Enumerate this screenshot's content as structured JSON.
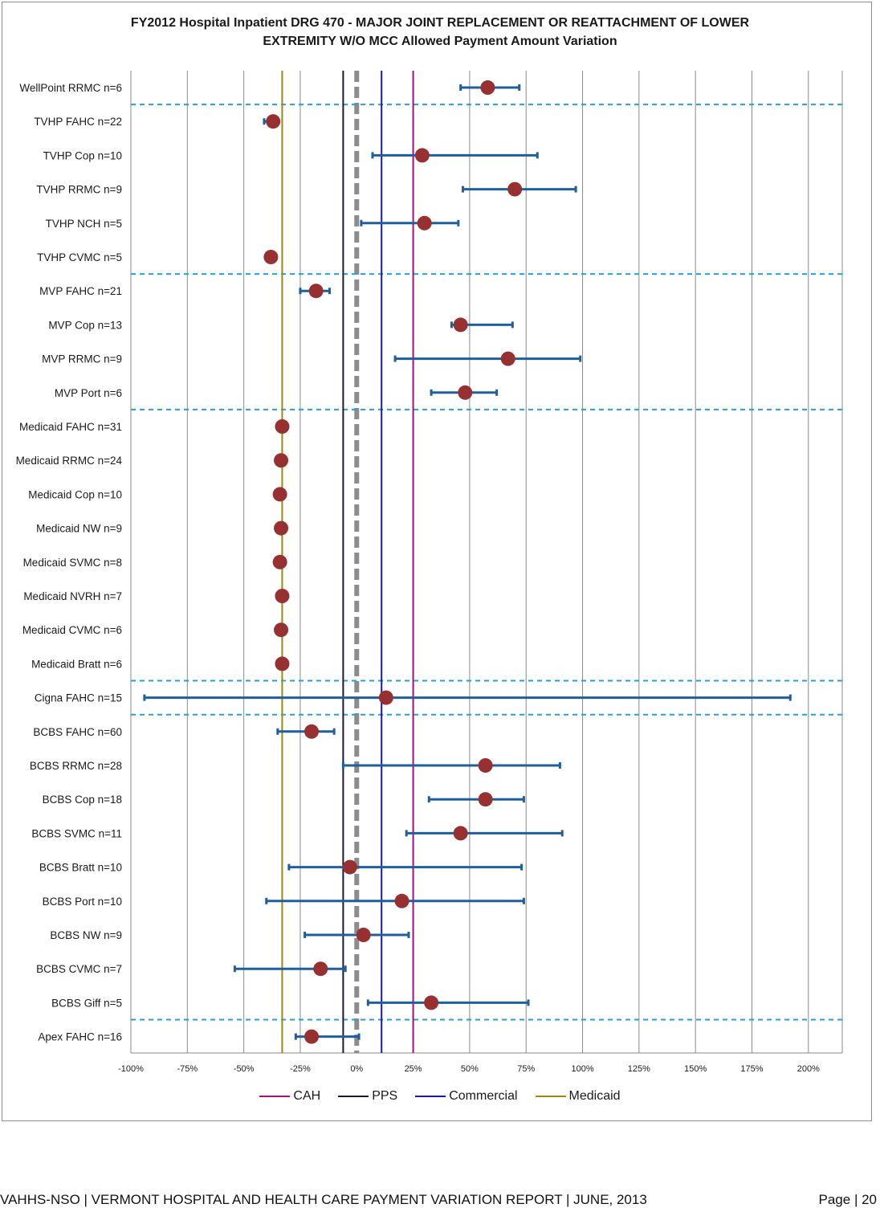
{
  "chart_data": {
    "type": "scatter",
    "title": "FY2012 Hospital Inpatient DRG 470 - MAJOR JOINT REPLACEMENT OR REATTACHMENT OF LOWER",
    "subtitle": "EXTREMITY W/O MCC Allowed Payment Amount Variation",
    "xlabel": "",
    "ylabel": "",
    "xlim": [
      -1.0,
      2.15
    ],
    "x_ticks": [
      -1.0,
      -0.75,
      -0.5,
      -0.25,
      0,
      0.25,
      0.5,
      0.75,
      1.0,
      1.25,
      1.5,
      1.75,
      2.0
    ],
    "x_tick_labels": [
      "-100%",
      "-75%",
      "-50%",
      "-25%",
      "0%",
      "25%",
      "50%",
      "75%",
      "100%",
      "125%",
      "150%",
      "175%",
      "200%"
    ],
    "grid": true,
    "marker_color": "#973030",
    "errorbar_color": "#1f5f9e",
    "separator_color": "#2a9fd6",
    "categories": [
      {
        "label": "WellPoint RRMC n=6",
        "value": 0.58,
        "low": 0.46,
        "high": 0.72
      },
      {
        "label": "TVHP FAHC n=22",
        "value": -0.37,
        "low": -0.41,
        "high": -0.36
      },
      {
        "label": "TVHP Cop n=10",
        "value": 0.29,
        "low": 0.07,
        "high": 0.8
      },
      {
        "label": "TVHP RRMC n=9",
        "value": 0.7,
        "low": 0.47,
        "high": 0.97
      },
      {
        "label": "TVHP NCH n=5",
        "value": 0.3,
        "low": 0.02,
        "high": 0.45
      },
      {
        "label": "TVHP CVMC n=5",
        "value": -0.38,
        "low": -0.4,
        "high": -0.36
      },
      {
        "label": "MVP FAHC n=21",
        "value": -0.18,
        "low": -0.25,
        "high": -0.12
      },
      {
        "label": "MVP Cop n=13",
        "value": 0.46,
        "low": 0.42,
        "high": 0.69
      },
      {
        "label": "MVP RRMC n=9",
        "value": 0.67,
        "low": 0.17,
        "high": 0.99
      },
      {
        "label": "MVP Port n=6",
        "value": 0.48,
        "low": 0.33,
        "high": 0.62
      },
      {
        "label": "Medicaid FAHC n=31",
        "value": -0.33
      },
      {
        "label": "Medicaid RRMC n=24",
        "value": -0.335
      },
      {
        "label": "Medicaid Cop n=10",
        "value": -0.34
      },
      {
        "label": "Medicaid NW n=9",
        "value": -0.335
      },
      {
        "label": "Medicaid SVMC n=8",
        "value": -0.34
      },
      {
        "label": "Medicaid NVRH n=7",
        "value": -0.33
      },
      {
        "label": "Medicaid CVMC n=6",
        "value": -0.335
      },
      {
        "label": "Medicaid Bratt n=6",
        "value": -0.33
      },
      {
        "label": "Cigna FAHC n=15",
        "value": 0.13,
        "low": -0.94,
        "high": 1.92
      },
      {
        "label": "BCBS FAHC n=60",
        "value": -0.2,
        "low": -0.35,
        "high": -0.1
      },
      {
        "label": "BCBS RRMC n=28",
        "value": 0.57,
        "low": -0.06,
        "high": 0.9
      },
      {
        "label": "BCBS Cop n=18",
        "value": 0.57,
        "low": 0.32,
        "high": 0.74
      },
      {
        "label": "BCBS SVMC n=11",
        "value": 0.46,
        "low": 0.22,
        "high": 0.91
      },
      {
        "label": "BCBS Bratt n=10",
        "value": -0.03,
        "low": -0.3,
        "high": 0.73
      },
      {
        "label": "BCBS Port n=10",
        "value": 0.2,
        "low": -0.4,
        "high": 0.74
      },
      {
        "label": "BCBS NW n=9",
        "value": 0.03,
        "low": -0.23,
        "high": 0.23
      },
      {
        "label": "BCBS CVMC n=7",
        "value": -0.16,
        "low": -0.54,
        "high": -0.05
      },
      {
        "label": "BCBS Giff n=5",
        "value": 0.33,
        "low": 0.05,
        "high": 0.76
      },
      {
        "label": "Apex FAHC n=16",
        "value": -0.2,
        "low": -0.27,
        "high": 0.01
      }
    ],
    "group_separators_after": [
      0,
      5,
      9,
      17,
      18,
      27
    ],
    "reference_lines": [
      {
        "name": "CAH",
        "value": 0.25,
        "color": "#a0127a"
      },
      {
        "name": "PPS",
        "value": -0.06,
        "color": "#1c1838"
      },
      {
        "name": "Commercial",
        "value": 0.11,
        "color": "#1a1aa8"
      },
      {
        "name": "Medicaid",
        "value": -0.33,
        "color": "#9c8a10"
      }
    ],
    "zero_line": {
      "value": 0,
      "color": "#8c8c8c"
    },
    "legend_placement": "bottom"
  },
  "footer": {
    "left": "VAHHS-NSO | VERMONT HOSPITAL AND HEALTH CARE PAYMENT VARIATION REPORT | JUNE, 2013",
    "right": "Page | 20"
  }
}
